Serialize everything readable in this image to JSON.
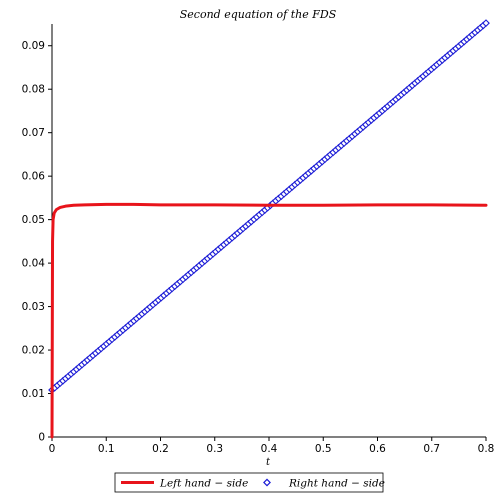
{
  "chart_data": {
    "type": "line",
    "title": "Second equation of the FDS",
    "xlabel": "t",
    "ylabel": "",
    "xlim": [
      0,
      0.8
    ],
    "ylim": [
      0,
      0.095
    ],
    "x_ticks": [
      "0",
      "0.1",
      "0.2",
      "0.3",
      "0.4",
      "0.5",
      "0.6",
      "0.7",
      "0.8"
    ],
    "y_ticks": [
      "0",
      "0.01",
      "0.02",
      "0.03",
      "0.04",
      "0.05",
      "0.06",
      "0.07",
      "0.08",
      "0.09"
    ],
    "grid": false,
    "legend_position": "bottom",
    "series": [
      {
        "name": "Left hand − side",
        "style": "line",
        "color": "#e8141b",
        "x": [
          0,
          0.001,
          0.002,
          0.004,
          0.008,
          0.015,
          0.025,
          0.04,
          0.06,
          0.1,
          0.15,
          0.2,
          0.3,
          0.4,
          0.5,
          0.6,
          0.7,
          0.8
        ],
        "y": [
          0,
          0.045,
          0.05,
          0.0515,
          0.0523,
          0.0528,
          0.0531,
          0.0533,
          0.0534,
          0.0535,
          0.0535,
          0.0534,
          0.0534,
          0.0533,
          0.0533,
          0.0534,
          0.0534,
          0.0533
        ]
      },
      {
        "name": "Right hand − side",
        "style": "markers",
        "color": "#1c1cd6",
        "x": [
          0,
          0.8
        ],
        "y": [
          0.0108,
          0.0952
        ],
        "marker_count": 160
      }
    ]
  }
}
